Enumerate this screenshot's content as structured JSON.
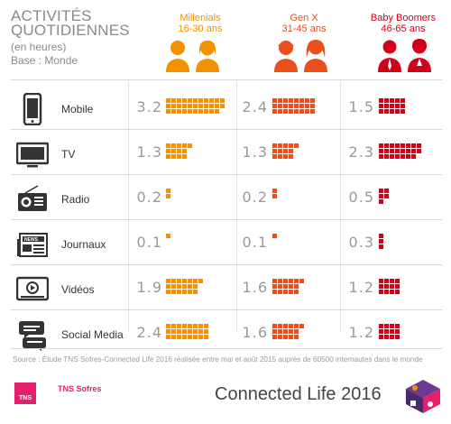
{
  "title_line1": "ACTIVITÉS",
  "title_line2": "QUOTIDIENNES",
  "unit": "(en heures)",
  "base": "Base : Monde",
  "colors": {
    "Millenials": "#f39200",
    "Gen X": "#e94e1b",
    "Baby Boomers": "#d0021b"
  },
  "groups": [
    {
      "name": "Millenials",
      "ages": "16-30 ans"
    },
    {
      "name": "Gen X",
      "ages": "31-45 ans"
    },
    {
      "name": "Baby Boomers",
      "ages": "46-65 ans"
    }
  ],
  "rows": [
    {
      "label": "Mobile",
      "icon": "mobile-phone-icon",
      "values": [
        "3.2",
        "2.4",
        "1.5"
      ]
    },
    {
      "label": "TV",
      "icon": "television-icon",
      "values": [
        "1.3",
        "1.3",
        "2.3"
      ]
    },
    {
      "label": "Radio",
      "icon": "radio-icon",
      "values": [
        "0.2",
        "0.2",
        "0.5"
      ]
    },
    {
      "label": "Journaux",
      "icon": "newspaper-icon",
      "values": [
        "0.1",
        "0.1",
        "0.3"
      ]
    },
    {
      "label": "Vidéos",
      "icon": "video-player-icon",
      "values": [
        "1.9",
        "1.6",
        "1.2"
      ]
    },
    {
      "label": "Social Media",
      "icon": "chat-bubbles-icon",
      "values": [
        "2.4",
        "1.6",
        "1.2"
      ]
    }
  ],
  "chart_data": {
    "type": "bar",
    "title": "ACTIVITÉS QUOTIDIENNES",
    "subtitle": "(en heures) Base : Monde",
    "categories": [
      "Mobile",
      "TV",
      "Radio",
      "Journaux",
      "Vidéos",
      "Social Media"
    ],
    "series": [
      {
        "name": "Millenials",
        "values": [
          3.2,
          1.3,
          0.2,
          0.1,
          1.9,
          2.4
        ]
      },
      {
        "name": "Gen X",
        "values": [
          2.4,
          1.3,
          0.2,
          0.1,
          1.6,
          1.6
        ]
      },
      {
        "name": "Baby Boomers",
        "values": [
          1.5,
          2.3,
          0.5,
          0.3,
          1.2,
          1.2
        ]
      }
    ]
  },
  "source": "Source : Étude TNS Sofres-Connected Life 2016 réalisée entre mai et août 2015 auprès de 60500 internautes dans le monde",
  "logo_text": "TNS",
  "brand": "TNS Sofres",
  "footer_title": "Connected Life 2016"
}
